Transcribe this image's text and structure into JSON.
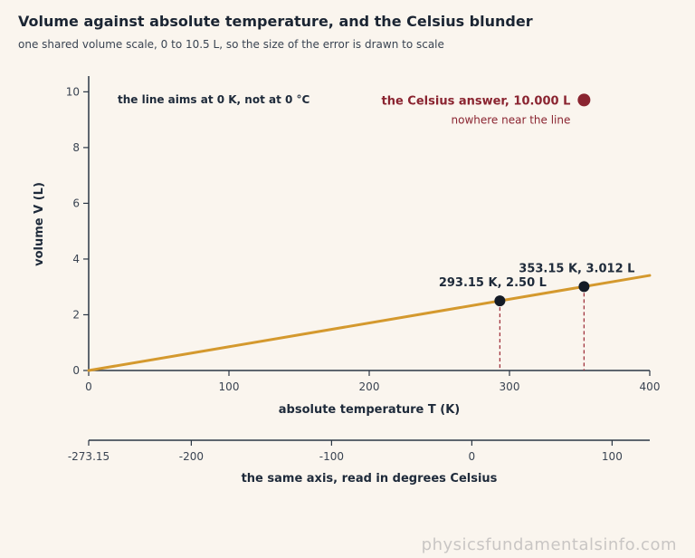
{
  "chart_data": {
    "type": "line",
    "title": "Volume against absolute temperature, and the Celsius blunder",
    "subtitle": "one shared volume scale, 0 to 10.5 L, so the size of the error is drawn to scale",
    "xlabel": "absolute temperature T (K)",
    "ylabel": "volume V (L)",
    "xlim": [
      0,
      400
    ],
    "ylim": [
      0,
      10.5
    ],
    "xticks": [
      0,
      100,
      200,
      300,
      400
    ],
    "yticks": [
      0,
      2,
      4,
      6,
      8,
      10
    ],
    "line": {
      "x": [
        0,
        400
      ],
      "y": [
        0,
        3.411
      ],
      "color": "#d4992e"
    },
    "points": [
      {
        "x": 293.15,
        "y": 2.5,
        "label": "293.15 K, 2.50 L"
      },
      {
        "x": 353.15,
        "y": 3.012,
        "label": "353.15 K, 3.012 L"
      }
    ],
    "celsius_point": {
      "x": 353.15,
      "y": 10.0,
      "label": "the Celsius answer, 10.000 L",
      "sublabel": "nowhere near the line",
      "color": "#8a2430"
    },
    "annotation": "the line aims at 0 K, not at 0 °C",
    "secondary_axis": {
      "xlabel": "the same axis, read in degrees Celsius",
      "offset": 273.15,
      "ticks": [
        -273.15,
        -200,
        -100,
        0,
        100
      ],
      "tick_labels": [
        "-273.15",
        "-200",
        "-100",
        "0",
        "100"
      ]
    },
    "grid": false
  },
  "watermark": "physicsfundamentalsinfo.com"
}
